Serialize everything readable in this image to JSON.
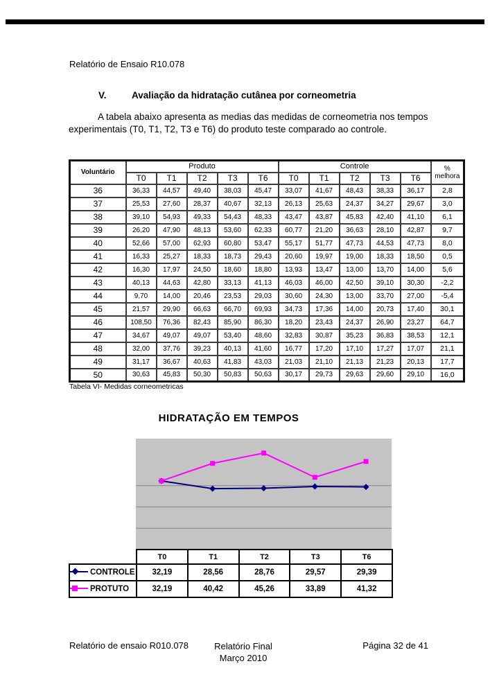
{
  "header": {
    "title": "Relatório de Ensaio R10.078"
  },
  "section": {
    "number": "V.",
    "title": "Avaliação da hidratação cutânea por corneometria"
  },
  "intro": {
    "text": "A tabela abaixo apresenta as  medias das medidas de corneometria nos tempos experimentais (T0, T1, T2, T3 e T6) do produto teste comparado ao controle."
  },
  "table": {
    "caption": "Tabela VI- Medidas corneometricas",
    "col_volunteer": "Voluntário",
    "group_produto": "Produto",
    "group_controle": "Controle",
    "pct_header": [
      "%",
      "melhora"
    ],
    "time_headers": [
      "T0",
      "T1",
      "T2",
      "T3",
      "T6"
    ],
    "rows": [
      {
        "vol": "36",
        "produto": [
          "36,33",
          "44,57",
          "49,40",
          "38,03",
          "45,47"
        ],
        "controle": [
          "33,07",
          "41,67",
          "48,43",
          "38,33",
          "36,17"
        ],
        "melhora": "2,8"
      },
      {
        "vol": "37",
        "produto": [
          "25,53",
          "27,60",
          "28,37",
          "40,67",
          "32,13"
        ],
        "controle": [
          "26,13",
          "25,63",
          "24,37",
          "34,27",
          "29,67"
        ],
        "melhora": "3,0"
      },
      {
        "vol": "38",
        "produto": [
          "39,10",
          "54,93",
          "49,33",
          "54,43",
          "48,33"
        ],
        "controle": [
          "43,47",
          "43,87",
          "45,83",
          "42,40",
          "41,10"
        ],
        "melhora": "6,1"
      },
      {
        "vol": "39",
        "produto": [
          "26,20",
          "47,90",
          "48,13",
          "53,60",
          "62,33"
        ],
        "controle": [
          "60,77",
          "21,20",
          "36,63",
          "28,10",
          "42,87"
        ],
        "melhora": "9,7"
      },
      {
        "vol": "40",
        "produto": [
          "52,66",
          "57,00",
          "62,93",
          "60,80",
          "53,47"
        ],
        "controle": [
          "55,17",
          "51,77",
          "47,73",
          "44,53",
          "47,73"
        ],
        "melhora": "8,0"
      },
      {
        "vol": "41",
        "produto": [
          "16,33",
          "25,27",
          "18,33",
          "18,73",
          "29,43"
        ],
        "controle": [
          "20,60",
          "19,97",
          "19,00",
          "18,33",
          "18,50"
        ],
        "melhora": "0,5"
      },
      {
        "vol": "42",
        "produto": [
          "16,30",
          "17,97",
          "24,50",
          "18,60",
          "18,80"
        ],
        "controle": [
          "13,93",
          "13,47",
          "13,00",
          "13,70",
          "14,00"
        ],
        "melhora": "5,6"
      },
      {
        "vol": "43",
        "produto": [
          "40,13",
          "44,63",
          "42,80",
          "33,13",
          "41,13"
        ],
        "controle": [
          "46,03",
          "46,00",
          "42,50",
          "39,10",
          "30,30"
        ],
        "melhora": "-2,2"
      },
      {
        "vol": "44",
        "produto": [
          "9,70",
          "14,00",
          "20,46",
          "23,53",
          "29,03"
        ],
        "controle": [
          "30,60",
          "24,30",
          "13,00",
          "33,70",
          "27,00"
        ],
        "melhora": "-5,4"
      },
      {
        "vol": "45",
        "produto": [
          "21,57",
          "29,90",
          "66,63",
          "66,70",
          "69,93"
        ],
        "controle": [
          "34,73",
          "17,36",
          "14,00",
          "20,73",
          "17,40"
        ],
        "melhora": "30,1"
      },
      {
        "vol": "46",
        "produto": [
          "108,50",
          "76,36",
          "82,43",
          "85,90",
          "86,30"
        ],
        "controle": [
          "18,20",
          "23,43",
          "24,37",
          "26,90",
          "23,27"
        ],
        "melhora": "64,7"
      },
      {
        "vol": "47",
        "produto": [
          "34,67",
          "49,07",
          "49,07",
          "53,40",
          "48,60"
        ],
        "controle": [
          "32,83",
          "30,87",
          "35,23",
          "36,83",
          "38,53"
        ],
        "melhora": "12,1"
      },
      {
        "vol": "48",
        "produto": [
          "32,00",
          "37,76",
          "39,23",
          "40,13",
          "41,60"
        ],
        "controle": [
          "16,77",
          "17,20",
          "17,10",
          "17,27",
          "17,07"
        ],
        "melhora": "21,1"
      },
      {
        "vol": "49",
        "produto": [
          "31,17",
          "36,67",
          "40,63",
          "41,83",
          "43,03"
        ],
        "controle": [
          "21,03",
          "21,10",
          "21,13",
          "21,23",
          "20,13"
        ],
        "melhora": "17,7"
      },
      {
        "vol": "50",
        "produto": [
          "30,63",
          "45,83",
          "50,30",
          "50,83",
          "50,63"
        ],
        "controle": [
          "30,17",
          "29,73",
          "29,63",
          "29,60",
          "29,10"
        ],
        "melhora": "16,0"
      }
    ]
  },
  "chart_data": {
    "type": "line",
    "title": "HIDRATAÇÃO EM TEMPOS",
    "categories": [
      "T0",
      "T1",
      "T2",
      "T3",
      "T6"
    ],
    "series": [
      {
        "name": "CONTROLE",
        "values": [
          32.19,
          28.56,
          28.76,
          29.57,
          29.39
        ],
        "color": "#000080",
        "marker": "diamond"
      },
      {
        "name": "PROTUTO",
        "values": [
          32.19,
          40.42,
          45.26,
          33.89,
          41.32
        ],
        "color": "#FF00FF",
        "marker": "square"
      }
    ],
    "ylim": [
      0,
      52
    ],
    "gridlines_y": [
      10,
      20,
      30
    ],
    "plot_bg": "#c4c4c4",
    "grid_color": "#848484",
    "legend_position": "left",
    "data_table_shown": true
  },
  "chart_table": {
    "headers": [
      "T0",
      "T1",
      "T2",
      "T3",
      "T6"
    ],
    "rows": [
      {
        "label": "CONTROLE",
        "values": [
          "32,19",
          "28,56",
          "28,76",
          "29,57",
          "29,39"
        ]
      },
      {
        "label": "PROTUTO",
        "values": [
          "32,19",
          "40,42",
          "45,26",
          "33,89",
          "41,32"
        ]
      }
    ]
  },
  "footer": {
    "left": "Relatório de ensaio R010.078",
    "center": [
      "Relatório Final",
      "Março 2010"
    ],
    "right": "Página 32 de 41"
  }
}
